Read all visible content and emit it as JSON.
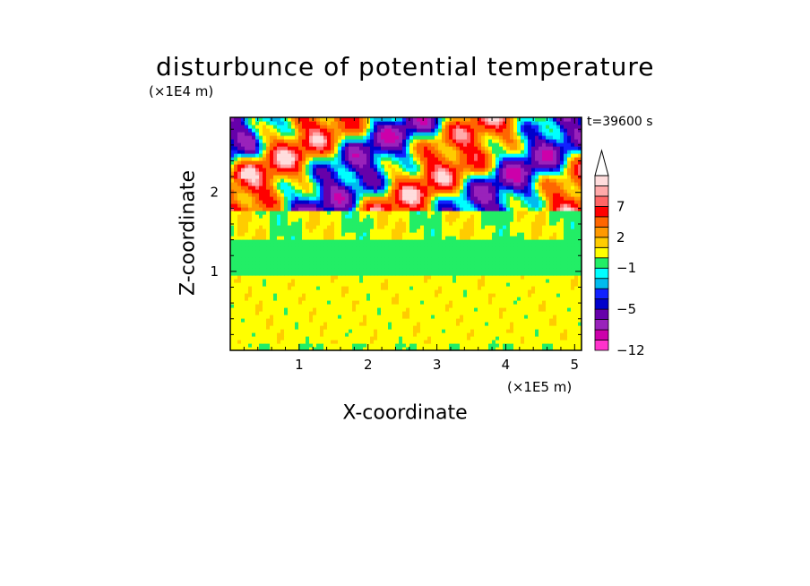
{
  "chart_data": {
    "type": "heatmap",
    "title": "disturbunce of potential temperature",
    "xlabel": "X-coordinate",
    "ylabel": "Z-coordinate",
    "x_unit": "(×1E5 m)",
    "y_unit": "(×1E4 m)",
    "annotation": "t=39600 s",
    "x_ticks": [
      "1",
      "2",
      "3",
      "4",
      "5"
    ],
    "x_tick_values": [
      1,
      2,
      3,
      4,
      5
    ],
    "y_ticks": [
      "1",
      "2"
    ],
    "y_tick_values": [
      1,
      2
    ],
    "xlim": [
      0,
      5.1
    ],
    "ylim": [
      0,
      2.95
    ],
    "colorbar": {
      "levels": [
        -12,
        -11,
        -9,
        -7,
        -5,
        -4,
        -3,
        -2,
        -1,
        0,
        1,
        2,
        3,
        5,
        7,
        8,
        9
      ],
      "colors": [
        "#ff33cc",
        "#cc00aa",
        "#9922bb",
        "#6600aa",
        "#0000cc",
        "#1122ff",
        "#00bbee",
        "#00ffff",
        "#22ee66",
        "#ffff00",
        "#ffcc00",
        "#ff9900",
        "#ff6600",
        "#ff0000",
        "#ff6666",
        "#ffaaaa",
        "#ffdddd"
      ],
      "labels": [
        {
          "text": "7",
          "value": 7
        },
        {
          "text": "2",
          "value": 2
        },
        {
          "text": "−1",
          "value": -1
        },
        {
          "text": "−5",
          "value": -5
        },
        {
          "text": "−12",
          "value": -12
        }
      ],
      "extend": "max"
    }
  }
}
